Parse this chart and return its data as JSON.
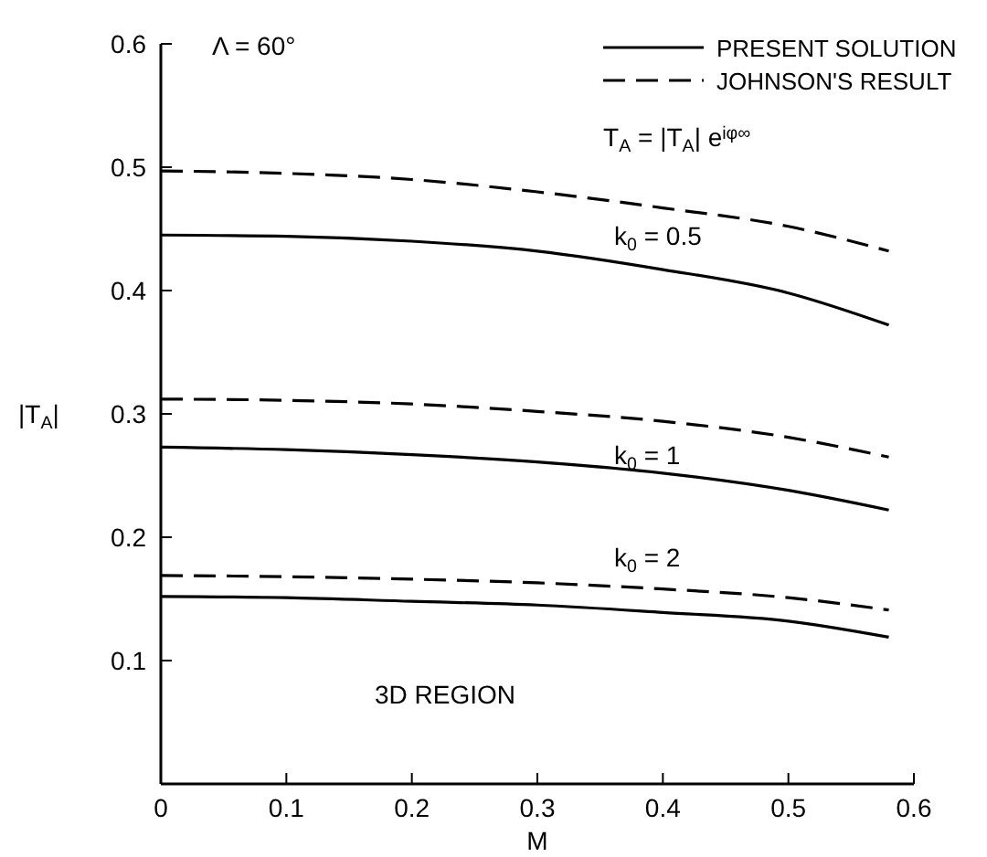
{
  "chart_data": {
    "type": "line",
    "xlabel": "M",
    "ylabel": "|T$_{A}$|",
    "x": [
      0,
      0.1,
      0.2,
      0.3,
      0.4,
      0.5,
      0.58
    ],
    "xlim": [
      0,
      0.6
    ],
    "xticks": [
      0,
      0.1,
      0.2,
      0.3,
      0.4,
      0.5,
      0.6
    ],
    "ylim": [
      0,
      0.6
    ],
    "yticks": [
      0.1,
      0.2,
      0.3,
      0.4,
      0.5,
      0.6
    ],
    "grid": false,
    "legend": "top right",
    "marker": "none",
    "series": [
      {
        "name": "PRESENT SOLUTION",
        "color": "#000000",
        "line_style": "solid",
        "values": [
          0.445,
          0.444,
          0.44,
          0.432,
          0.417,
          0.398,
          0.372
        ]
      },
      {
        "name": "JOHNSON'S RESULT",
        "color": "#000000",
        "line_style": "dashed",
        "values": [
          0.497,
          0.495,
          0.49,
          0.48,
          0.467,
          0.452,
          0.432
        ]
      },
      {
        "color": "#000000",
        "line_style": "solid",
        "values": [
          0.273,
          0.271,
          0.267,
          0.261,
          0.252,
          0.238,
          0.222
        ]
      },
      {
        "color": "#000000",
        "line_style": "dashed",
        "values": [
          0.312,
          0.311,
          0.308,
          0.302,
          0.294,
          0.281,
          0.265
        ]
      },
      {
        "color": "#000000",
        "line_style": "solid",
        "values": [
          0.152,
          0.151,
          0.148,
          0.145,
          0.139,
          0.132,
          0.119
        ]
      },
      {
        "color": "#000000",
        "line_style": "dashed",
        "values": [
          0.169,
          0.168,
          0.166,
          0.163,
          0.158,
          0.151,
          0.141
        ]
      }
    ],
    "annotations": [
      "Λ = 60°",
      "T$_{A}$ = |T$_{A}$| e$^{iφ∞}$",
      "k$_{0}$ = 0.5",
      "k$_{0}$ = 1",
      "k$_{0}$ = 2",
      "3D REGION"
    ]
  }
}
